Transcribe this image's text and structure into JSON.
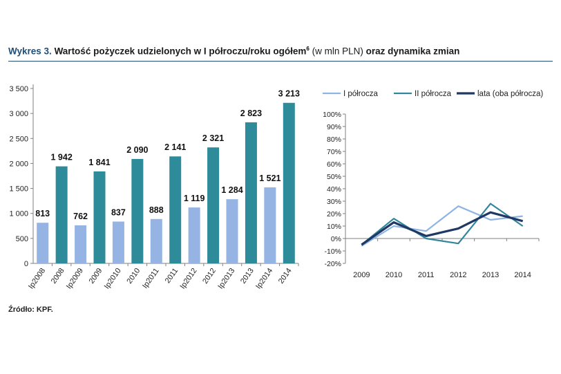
{
  "title": {
    "prefix": "Wykres 3.",
    "main": "Wartość pożyczek udzielonych w I półroczu/roku ogółem",
    "superscript": "6",
    "unit": "(w mln PLN)",
    "rest": "oraz dynamika zmian"
  },
  "source": "Źródło: KPF.",
  "colors": {
    "title_blue": "#1f4e79",
    "bar_light": "#95b3e3",
    "bar_dark": "#2e8c9a",
    "line_h1": "#8eb4e3",
    "line_h2": "#31859c",
    "line_full": "#1f3864"
  },
  "chart_data": [
    {
      "type": "bar",
      "categories": [
        "Ip2008",
        "2008",
        "Ip2009",
        "2009",
        "Ip2010",
        "2010",
        "Ip2011",
        "2011",
        "Ip2012",
        "2012",
        "Ip2013",
        "2013",
        "Ip2014",
        "2014"
      ],
      "values": [
        813,
        1942,
        762,
        1841,
        837,
        2090,
        888,
        2141,
        1119,
        2321,
        1284,
        2823,
        1521,
        3213
      ],
      "data_labels": [
        "813",
        "1 942",
        "762",
        "1 841",
        "837",
        "2 090",
        "888",
        "2 141",
        "1 119",
        "2 321",
        "1 284",
        "2 823",
        "1 521",
        "3 213"
      ],
      "bar_kind": [
        "half",
        "full",
        "half",
        "full",
        "half",
        "full",
        "half",
        "full",
        "half",
        "full",
        "half",
        "full",
        "half",
        "full"
      ],
      "ylim": [
        0,
        3500
      ],
      "yticks": [
        0,
        500,
        1000,
        1500,
        2000,
        2500,
        3000,
        3500
      ],
      "ytick_labels": [
        "0",
        "500",
        "1 000",
        "1 500",
        "2 000",
        "2 500",
        "3 000",
        "3 500"
      ],
      "grid": false
    },
    {
      "type": "line",
      "x": [
        "2009",
        "2010",
        "2011",
        "2012",
        "2013",
        "2014"
      ],
      "series": [
        {
          "name": "I półrocza",
          "values": [
            -6,
            10,
            6,
            26,
            15,
            18
          ]
        },
        {
          "name": "II półrocza",
          "values": [
            -5,
            16,
            0,
            -4,
            28,
            10
          ]
        },
        {
          "name": "lata (oba półrocza)",
          "values": [
            -5,
            13,
            2,
            8,
            21,
            14
          ]
        }
      ],
      "ylim": [
        -20,
        100
      ],
      "yticks": [
        -20,
        -10,
        0,
        10,
        20,
        30,
        40,
        50,
        60,
        70,
        80,
        90,
        100
      ],
      "ytick_labels": [
        "-20%",
        "-10%",
        "0%",
        "10%",
        "20%",
        "30%",
        "40%",
        "50%",
        "60%",
        "70%",
        "80%",
        "90%",
        "100%"
      ],
      "legend_position": "top",
      "grid": false
    }
  ]
}
